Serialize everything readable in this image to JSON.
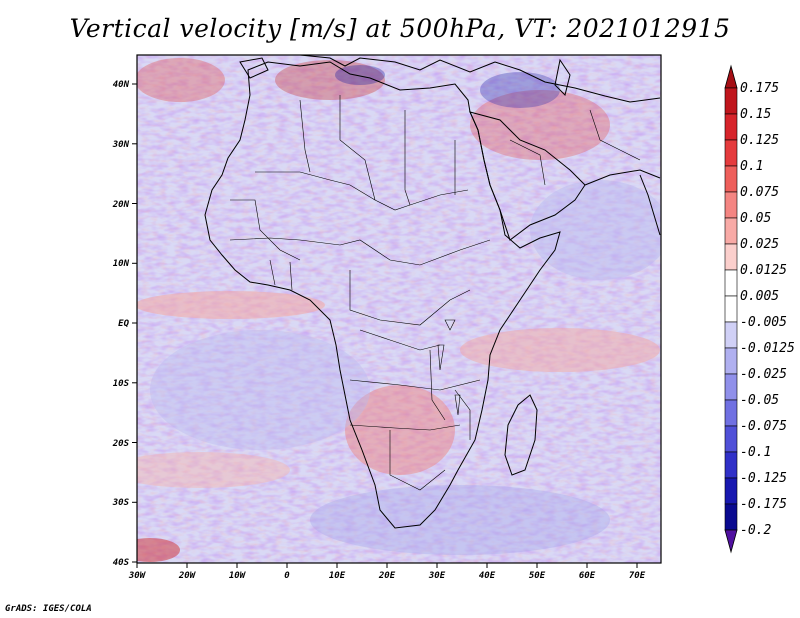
{
  "title": "Vertical velocity [m/s] at 500hPa, VT: 2021012915",
  "credit": "GrADS: IGES/COLA",
  "lat_labels": [
    "40N",
    "30N",
    "20N",
    "10N",
    "EQ",
    "10S",
    "20S",
    "30S",
    "40S"
  ],
  "lon_labels": [
    "30W",
    "20W",
    "10W",
    "0",
    "10E",
    "20E",
    "30E",
    "40E",
    "50E",
    "60E",
    "70E"
  ],
  "colorbar": {
    "labels": [
      "0.175",
      "0.15",
      "0.125",
      "0.1",
      "0.075",
      "0.05",
      "0.025",
      "0.0125",
      "0.005",
      "-0.005",
      "-0.0125",
      "-0.025",
      "-0.05",
      "-0.075",
      "-0.1",
      "-0.125",
      "-0.175",
      "-0.2"
    ],
    "colors": [
      "#a50f15",
      "#c0161d",
      "#d7242b",
      "#e53b3d",
      "#ee5f5b",
      "#f48582",
      "#f8aaa6",
      "#fbcfcc",
      "#ffffff",
      "#ffffff",
      "#d0d0f6",
      "#b0b0f0",
      "#9090ea",
      "#7070e2",
      "#5050d8",
      "#3030c8",
      "#1818b0",
      "#0a0a90",
      "#5010a0"
    ]
  }
}
